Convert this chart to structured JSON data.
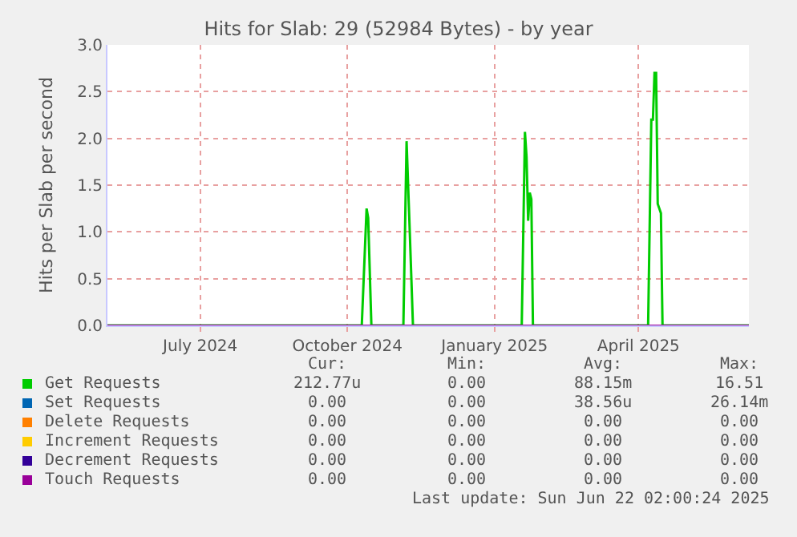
{
  "chart_data": {
    "type": "line",
    "title": "Hits for Slab: 29 (52984 Bytes) - by year",
    "ylabel": "Hits per Slab per second",
    "xlim": [
      "2024-05-04",
      "2025-06-09"
    ],
    "xticks": [
      {
        "value": "2024-07-01",
        "label": "July 2024"
      },
      {
        "value": "2024-10-01",
        "label": "October 2024"
      },
      {
        "value": "2025-01-01",
        "label": "January 2025"
      },
      {
        "value": "2025-04-01",
        "label": "April 2025"
      }
    ],
    "ylim": [
      0,
      3
    ],
    "yticks": [
      {
        "value": 0,
        "label": "0.0"
      },
      {
        "value": 0.5,
        "label": "0.5"
      },
      {
        "value": 1,
        "label": "1.0"
      },
      {
        "value": 1.5,
        "label": "1.5"
      },
      {
        "value": 2,
        "label": "2.0"
      },
      {
        "value": 2.5,
        "label": "2.5"
      },
      {
        "value": 3,
        "label": "3.0"
      }
    ],
    "grid": true,
    "legend": "bottom left",
    "marker": "none",
    "line_style": "solid",
    "series": [
      {
        "name": "Get Requests",
        "color": "#00cc00",
        "x": [
          "2024-05-04",
          "2024-10-10",
          "2024-10-13",
          "2024-10-14",
          "2024-10-16",
          "2024-11-05",
          "2024-11-07",
          "2024-11-09",
          "2024-11-11",
          "2025-01-18",
          "2025-01-20",
          "2025-01-21",
          "2025-01-22",
          "2025-01-23",
          "2025-01-24",
          "2025-01-25",
          "2025-04-07",
          "2025-04-09",
          "2025-04-10",
          "2025-04-11",
          "2025-04-12",
          "2025-04-13",
          "2025-04-15",
          "2025-04-16",
          "2025-06-09"
        ],
        "values": [
          0,
          0,
          1.25,
          1.15,
          0,
          0,
          1.97,
          1.0,
          0,
          0,
          2.07,
          1.8,
          1.12,
          1.42,
          1.35,
          0,
          0,
          2.2,
          2.2,
          2.7,
          2.7,
          1.3,
          1.2,
          0,
          0
        ]
      },
      {
        "name": "Set Requests",
        "color": "#0066b3",
        "values": [
          null
        ]
      },
      {
        "name": "Delete Requests",
        "color": "#ff8000",
        "values": [
          null
        ]
      },
      {
        "name": "Increment Requests",
        "color": "#ffcc00",
        "values": [
          null
        ]
      },
      {
        "name": "Decrement Requests",
        "color": "#330099",
        "values": [
          null
        ]
      },
      {
        "name": "Touch Requests",
        "color": "#990099",
        "x": [
          "2024-05-04",
          "2025-06-09"
        ],
        "values": [
          0,
          0
        ]
      }
    ],
    "annotations": [
      "Cur:",
      "Min:",
      "Avg:",
      "Max:",
      "212.77u",
      "0.00",
      "88.15m",
      "16.51",
      "0.00",
      "0.00",
      "38.56u",
      "26.14m",
      "0.00",
      "0.00",
      "0.00",
      "0.00",
      "0.00",
      "0.00",
      "0.00",
      "0.00",
      "0.00",
      "0.00",
      "0.00",
      "0.00",
      "0.00",
      "0.00",
      "0.00",
      "0.00",
      "Last update: Sun Jun 22 02:00:24 2025"
    ]
  }
}
